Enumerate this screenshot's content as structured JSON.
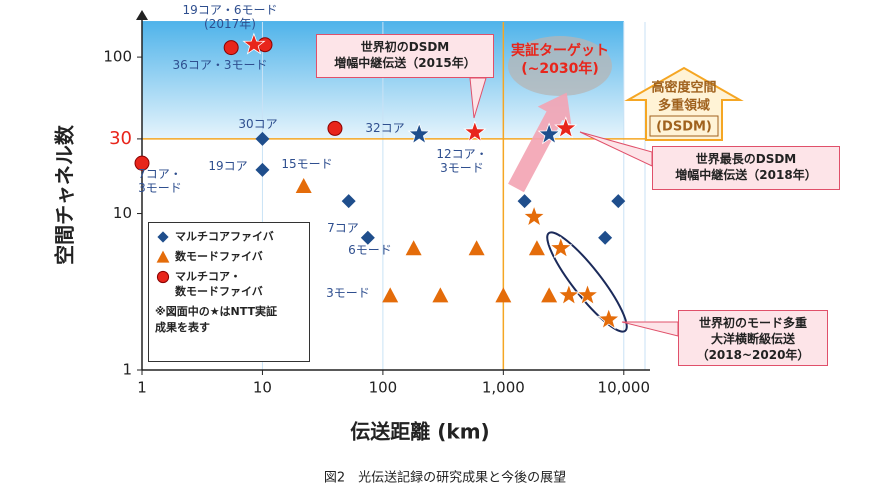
{
  "chart_data": {
    "type": "scatter",
    "xscale": "log",
    "yscale": "log",
    "xlabel": "伝送距離 (km)",
    "ylabel": "空間チャネル数",
    "caption": "図2　光伝送記録の研究成果と今後の展望",
    "xlim": [
      1,
      15000
    ],
    "ylim": [
      1,
      200
    ],
    "xticks": [
      1,
      10,
      100,
      {
        "value": 1000,
        "label": "1,000"
      },
      {
        "value": 10000,
        "label": "10,000"
      }
    ],
    "yticks": [
      1,
      10,
      {
        "value": 30,
        "label": "30",
        "color": "#e8251b"
      },
      100
    ],
    "grid": true,
    "grid_color": "#c9e2f5",
    "reference_lines": {
      "color": "#f5a623",
      "x": [
        1000
      ],
      "y": [
        30
      ]
    },
    "region": {
      "xlim": [
        1,
        10000
      ],
      "ylim": [
        30,
        170
      ]
    },
    "series": [
      {
        "name": "マルチコアファイバ",
        "color": "#1f4e8c",
        "marker": "diamond",
        "x": [
          10,
          10,
          52,
          75,
          1500,
          7000,
          9000,
          200,
          2400
        ],
        "values": [
          30,
          19,
          12,
          7,
          12,
          7,
          12,
          32,
          32
        ],
        "markers": [
          "diamond",
          "diamond",
          "diamond",
          "diamond",
          "diamond",
          "diamond",
          "diamond",
          "star",
          "star"
        ]
      },
      {
        "name": "数モードファイバ",
        "color": "#e46c0a",
        "marker": "triangle",
        "x": [
          22,
          180,
          600,
          1900,
          115,
          300,
          1000,
          2400,
          1800,
          3000,
          3500,
          5000,
          7500
        ],
        "values": [
          15,
          6,
          6,
          6,
          3,
          3,
          3,
          3,
          9.5,
          6,
          3,
          3,
          2.1
        ],
        "markers": [
          "triangle",
          "triangle",
          "triangle",
          "triangle",
          "triangle",
          "triangle",
          "triangle",
          "triangle",
          "star",
          "star",
          "star",
          "star",
          "star"
        ]
      },
      {
        "name": "マルチコア・\n数モードファイバ",
        "color": "#e8251b",
        "marker": "circle",
        "x": [
          1,
          5.5,
          10.5,
          40,
          8.5,
          580,
          3300
        ],
        "values": [
          21,
          115,
          120,
          35,
          120,
          33,
          35
        ],
        "markers": [
          "circle",
          "circle",
          "circle",
          "circle",
          "star",
          "star",
          "star"
        ]
      }
    ],
    "legend_note": "※図面中の★はNTT実証\n成果を表す",
    "annotations": [
      "19コア・6モード\n(2017年)",
      "36コア・3モード",
      "30コア",
      "19コア",
      "7コア・\n3モード",
      "15モード",
      "32コア",
      "12コア・\n3モード",
      "7コア",
      "6モード",
      "3モード"
    ],
    "callouts": [
      "世界初のDSDM\n増幅中継伝送（2015年）",
      "世界最長のDSDM\n増幅中継伝送（2018年）",
      "世界初のモード多重\n大洋横断級伝送\n（2018~2020年）"
    ],
    "target": "実証ターゲット\n(~2030年)",
    "region_label": [
      "高密度空間",
      "多重領域",
      "(DSDM)"
    ]
  }
}
